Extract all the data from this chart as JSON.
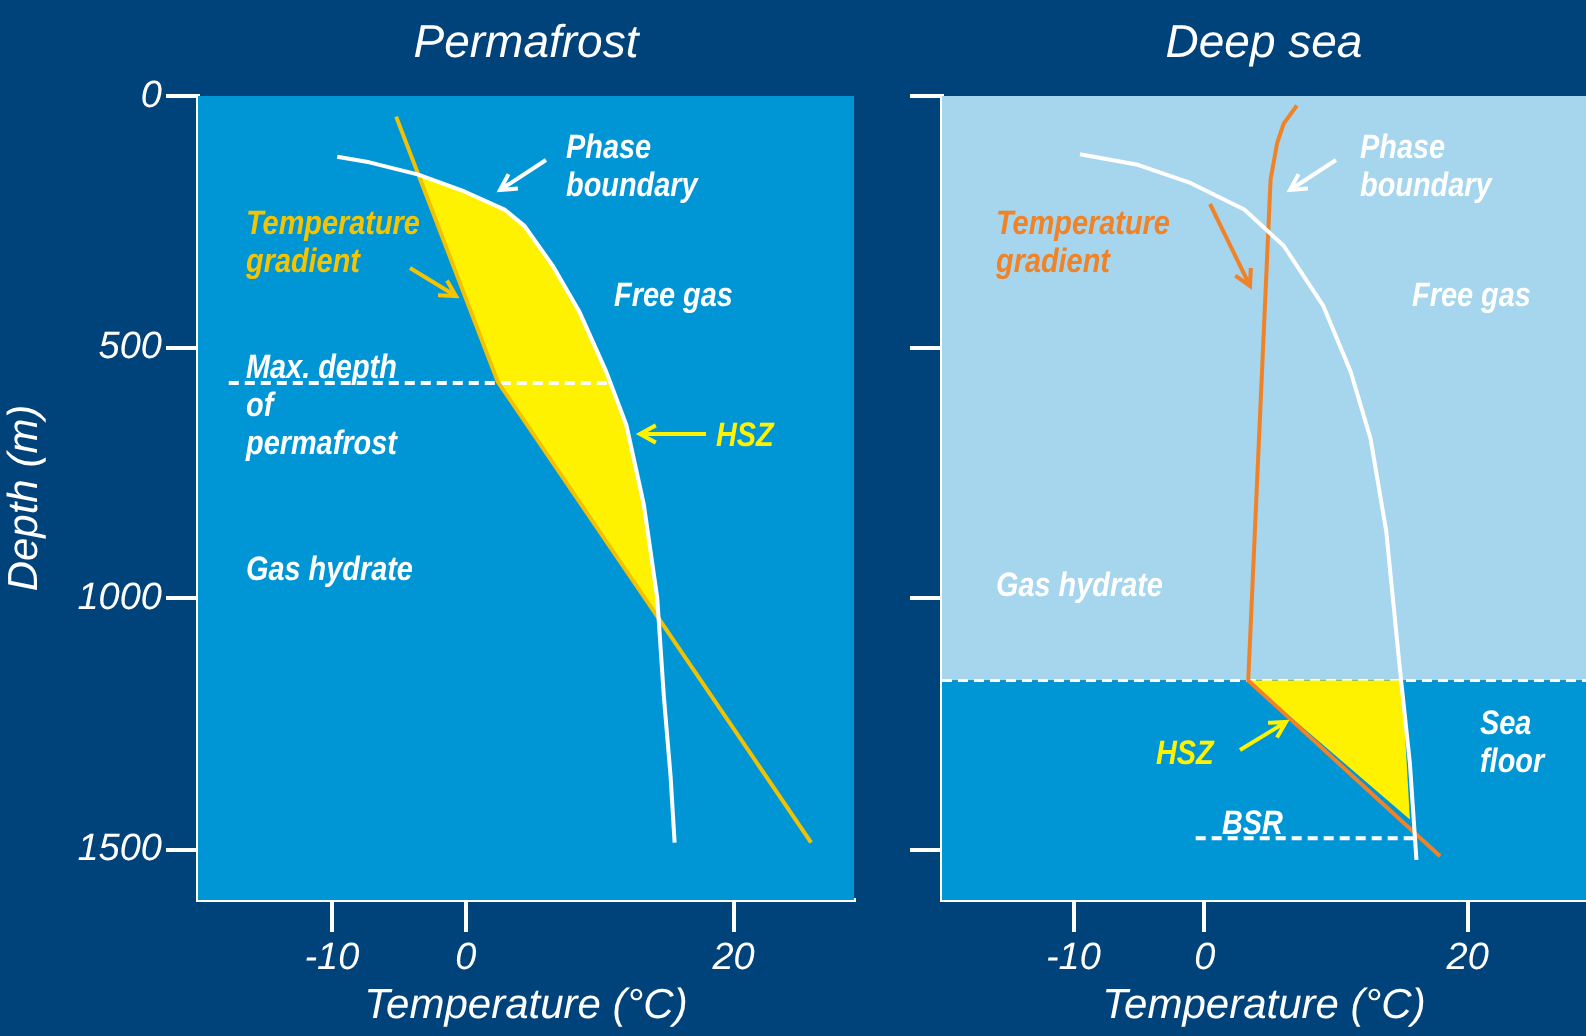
{
  "chart_data": [
    {
      "type": "line",
      "title": "Permafrost",
      "xlabel": "Temperature (°C)",
      "ylabel": "Depth (m)",
      "xlim": [
        -20,
        29
      ],
      "xticks": [
        -10,
        0,
        20
      ],
      "ylim": [
        1600,
        0
      ],
      "yticks": [
        0,
        500,
        1000,
        1500
      ],
      "series": [
        {
          "type": "area",
          "color": "#fff200",
          "x": [
            -3.4,
            -0.1,
            2.9,
            4.4,
            6.5,
            8.5,
            10.5,
            12.0,
            13.3,
            14.3,
            14.5,
            2.4,
            -3.4
          ],
          "values": [
            156,
            190,
            226,
            259,
            338,
            430,
            549,
            655,
            813,
            1000,
            1040,
            569,
            156
          ]
        },
        {
          "type": "line",
          "color": "#ffffff",
          "x": [
            -9.6,
            -7.2,
            -3.6,
            -0.1,
            2.9,
            4.4,
            6.5,
            8.5,
            10.5,
            12.0,
            13.3,
            14.3,
            14.8,
            15.3,
            15.6
          ],
          "values": [
            121,
            132,
            156,
            190,
            226,
            259,
            338,
            430,
            549,
            655,
            813,
            998,
            1196,
            1354,
            1486
          ]
        },
        {
          "type": "line",
          "color": "#f2c200",
          "x": [
            -5.2,
            2.4,
            25.8
          ],
          "values": [
            41,
            569,
            1486
          ]
        },
        {
          "type": "line",
          "color": "#ffffff",
          "line_style": "dashed",
          "x": [
            -17.7,
            10.8
          ],
          "values": [
            571,
            571
          ]
        }
      ],
      "annotations": [
        "Phase boundary",
        "Temperature gradient",
        "Free gas",
        "Max. depth of permafrost",
        "HSZ",
        "Gas hydrate"
      ]
    },
    {
      "type": "line",
      "title": "Deep sea",
      "xlabel": "Temperature (°C)",
      "xlim": [
        -20,
        29
      ],
      "xticks": [
        -10,
        0,
        20
      ],
      "ylim": [
        1600,
        0
      ],
      "yticks": [
        0,
        500,
        1000,
        1500
      ],
      "tick_labels": "x",
      "bands": [
        {
          "axis": "y",
          "from": 0,
          "to": 1163,
          "color": "#a6d5ee"
        },
        {
          "axis": "y",
          "from": 1163,
          "to": 1600,
          "color": "#0096d6",
          "label": "Sea floor"
        }
      ],
      "ref_lines": [
        {
          "axis": "y",
          "value": 1163,
          "color": "#ffffff",
          "line_style": "dashed"
        }
      ],
      "series": [
        {
          "type": "area",
          "color": "#fff200",
          "x": [
            3.3,
            15.0,
            15.6,
            3.3
          ],
          "values": [
            1163,
            1163,
            1440,
            1163
          ]
        },
        {
          "type": "line",
          "color": "#ffffff",
          "x": [
            -9.5,
            -5.1,
            -1.1,
            3.0,
            6.0,
            9.0,
            11.1,
            12.6,
            13.8,
            14.8,
            15.6,
            16.1
          ],
          "values": [
            116,
            137,
            173,
            226,
            298,
            417,
            549,
            681,
            866,
            1130,
            1328,
            1520
          ]
        },
        {
          "type": "line",
          "color": "#f08227",
          "x": [
            7.0,
            6.0,
            5.5,
            5.0,
            3.3,
            17.9
          ],
          "values": [
            19,
            55,
            94,
            166,
            1163,
            1513
          ]
        },
        {
          "type": "line",
          "color": "#ffffff",
          "line_style": "dashed",
          "x": [
            -0.7,
            16.1
          ],
          "values": [
            1477,
            1477
          ]
        }
      ],
      "annotations": [
        "Phase boundary",
        "Temperature gradient",
        "Free gas",
        "Gas hydrate",
        "HSZ",
        "BSR"
      ]
    }
  ]
}
